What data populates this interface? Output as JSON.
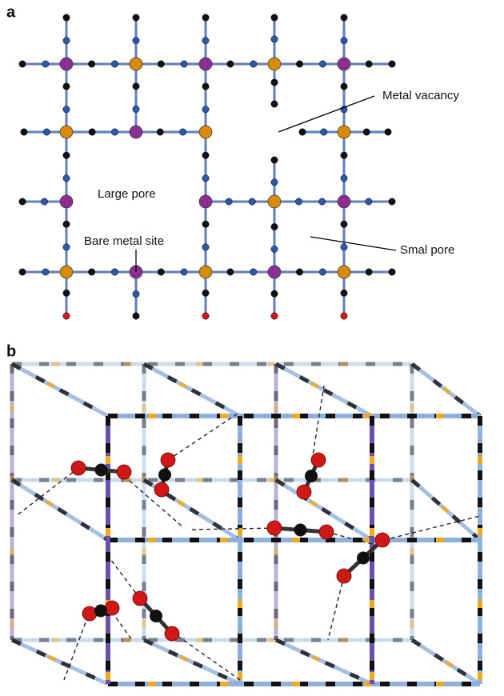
{
  "panels": [
    {
      "label": "a",
      "annotations": [
        "Metal vacancy",
        "Large pore",
        "Bare metal site",
        "Smal pore"
      ]
    },
    {
      "label": "b"
    }
  ]
}
